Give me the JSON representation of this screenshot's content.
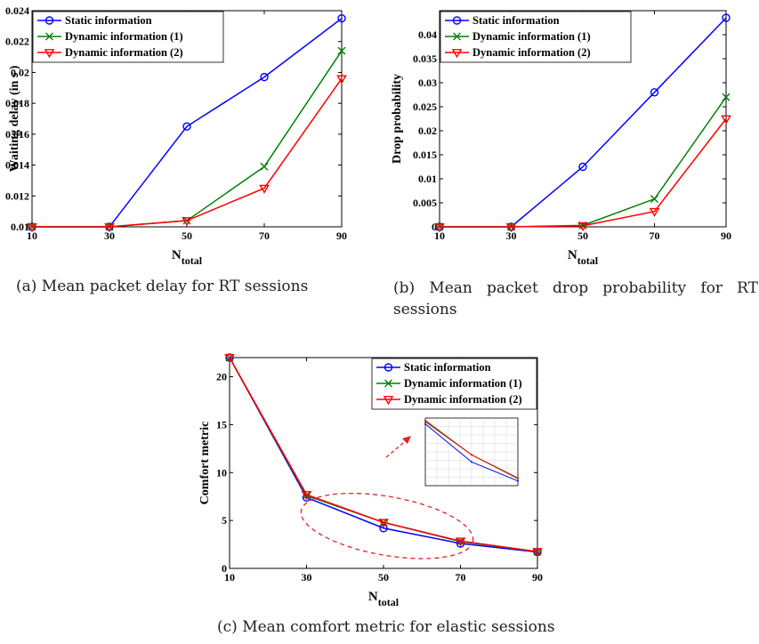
{
  "charts": [
    {
      "id": "a",
      "caption": "(a) Mean packet delay for RT sessions",
      "chart_data": {
        "type": "line",
        "title": "",
        "xlabel": "N",
        "xlabel_sub": "total",
        "ylabel": "Waiting delay (in s )",
        "x": [
          10,
          30,
          50,
          70,
          90
        ],
        "xlim": [
          10,
          90
        ],
        "ylim": [
          0.01,
          0.024
        ],
        "yticks": [
          0.01,
          0.012,
          0.014,
          0.016,
          0.018,
          0.02,
          0.022,
          0.024
        ],
        "ytick_labels": [
          "0.01",
          "0.012",
          "0.014",
          "0.016",
          "0.018",
          "0.02",
          "0.022",
          "0.024"
        ],
        "grid": false,
        "legend_position": "top-left",
        "series": [
          {
            "name": "Static information",
            "color": "#0000ff",
            "marker": "circle",
            "values": [
              0.01,
              0.01,
              0.0165,
              0.0197,
              0.0235
            ]
          },
          {
            "name": "Dynamic information (1)",
            "color": "#008000",
            "marker": "x",
            "values": [
              0.01,
              0.01,
              0.0104,
              0.0139,
              0.0214
            ]
          },
          {
            "name": "Dynamic information (2)",
            "color": "#ff0000",
            "marker": "triangle-down",
            "values": [
              0.01,
              0.01,
              0.0104,
              0.0125,
              0.0196
            ]
          }
        ]
      }
    },
    {
      "id": "b",
      "caption": "(b) Mean packet drop probability for RT sessions",
      "chart_data": {
        "type": "line",
        "title": "",
        "xlabel": "N",
        "xlabel_sub": "total",
        "ylabel": "Drop probability",
        "x": [
          10,
          30,
          50,
          70,
          90
        ],
        "xlim": [
          10,
          90
        ],
        "ylim": [
          0,
          0.045
        ],
        "yticks": [
          0,
          0.005,
          0.01,
          0.015,
          0.02,
          0.025,
          0.03,
          0.035,
          0.04
        ],
        "ytick_labels": [
          "0",
          "0.005",
          "0.01",
          "0.015",
          "0.02",
          "0.025",
          "0.03",
          "0.035",
          "0.04"
        ],
        "grid": false,
        "legend_position": "top-left",
        "series": [
          {
            "name": "Static information",
            "color": "#0000ff",
            "marker": "circle",
            "values": [
              0,
              0,
              0.0125,
              0.028,
              0.0435
            ]
          },
          {
            "name": "Dynamic information (1)",
            "color": "#008000",
            "marker": "x",
            "values": [
              0,
              0,
              0.0003,
              0.0058,
              0.027
            ]
          },
          {
            "name": "Dynamic information (2)",
            "color": "#ff0000",
            "marker": "triangle-down",
            "values": [
              0,
              0,
              0.0002,
              0.0032,
              0.0225
            ]
          }
        ]
      }
    },
    {
      "id": "c",
      "caption": "(c) Mean comfort metric for elastic sessions",
      "chart_data": {
        "type": "line",
        "title": "",
        "xlabel": "N",
        "xlabel_sub": "total",
        "ylabel": "Comfort metric",
        "x": [
          10,
          30,
          50,
          70,
          90
        ],
        "xlim": [
          10,
          90
        ],
        "ylim": [
          0,
          22
        ],
        "yticks": [
          0,
          5,
          10,
          15,
          20
        ],
        "ytick_labels": [
          "0",
          "5",
          "10",
          "15",
          "20"
        ],
        "grid": false,
        "legend_position": "top-right",
        "annotation": "dashed ellipse around x = 30–70 with arrow pointing to zoomed inset",
        "series": [
          {
            "name": "Static information",
            "color": "#0000ff",
            "marker": "circle",
            "values": [
              22,
              7.4,
              4.2,
              2.6,
              1.7
            ]
          },
          {
            "name": "Dynamic information (1)",
            "color": "#008000",
            "marker": "x",
            "values": [
              22,
              7.6,
              4.8,
              2.8,
              1.75
            ]
          },
          {
            "name": "Dynamic information (2)",
            "color": "#ff0000",
            "marker": "triangle-down",
            "values": [
              22,
              7.7,
              4.8,
              2.85,
              1.75
            ]
          }
        ],
        "inset": {
          "x": [
            30,
            50,
            70
          ],
          "series": [
            {
              "color": "#0000ff",
              "values": [
                7.4,
                4.2,
                2.6
              ]
            },
            {
              "color": "#008000",
              "values": [
                7.6,
                4.8,
                2.8
              ]
            },
            {
              "color": "#ff0000",
              "values": [
                7.7,
                4.8,
                2.85
              ]
            }
          ]
        }
      }
    }
  ]
}
